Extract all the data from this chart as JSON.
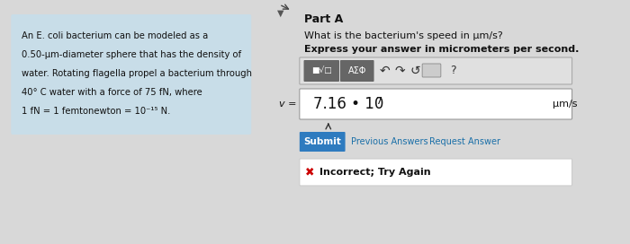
{
  "bg_color": "#d8d8d8",
  "left_panel_bg": "#c8dde8",
  "right_panel_bg": "#e8e8e8",
  "problem_text_line1": "An E. coli bacterium can be modeled as a",
  "problem_text_line2": "0.50-μm-diameter sphere that has the density of",
  "problem_text_line3": "water. Rotating flagella propel a bacterium through",
  "problem_text_line4": "40° C water with a force of 75 fN, where",
  "problem_text_line5": "1 fN = 1 femtonewton = 10⁻¹⁵ N.",
  "part_label": "Part A",
  "question_line1": "What is the bacterium's speed in μm/s?",
  "question_line2": "Express your answer in micrometers per second.",
  "toolbar_label1": "■√□",
  "toolbar_label2": "AΣΦ",
  "answer_prefix": "v =",
  "answer_value": "7.16 • 10",
  "answer_exp": "7",
  "answer_unit": "μm/s",
  "submit_text": "Submit",
  "prev_text": "Previous Answers",
  "req_text": "Request Answer",
  "incorrect_text": "Incorrect; Try Again",
  "submit_bg": "#2e7bbf",
  "incorrect_bg": "#ffffff",
  "incorrect_border": "#cccccc",
  "x_color": "#cc0000",
  "toolbar_bg": "#666666",
  "answer_box_bg": "#ffffff",
  "answer_box_border": "#999999"
}
